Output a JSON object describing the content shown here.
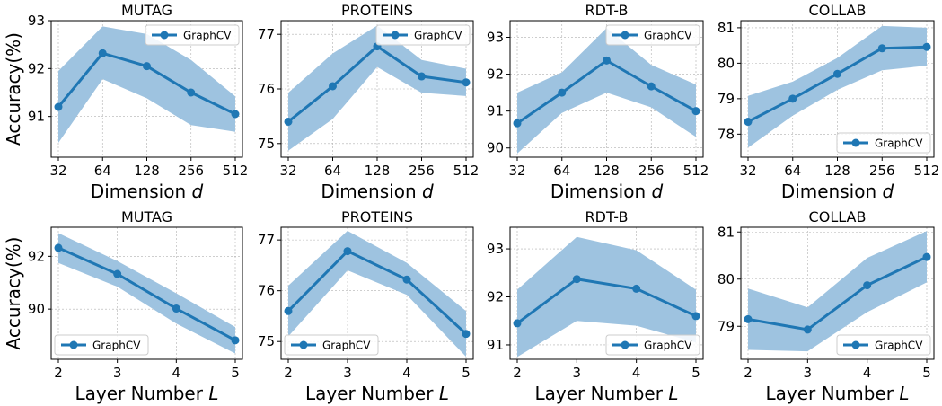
{
  "colors": {
    "line": "#1f77b4",
    "band": "#9ec3e0",
    "grid": "#b0b0b0",
    "axis": "#000000"
  },
  "chart_data": [
    {
      "type": "line",
      "title": "MUTAG",
      "xlabel": "Dimension",
      "xlabel_var": "d",
      "ylabel": "Accuracy(%)",
      "categories": [
        "32",
        "64",
        "128",
        "256",
        "512"
      ],
      "series": [
        {
          "name": "GraphCV",
          "values": [
            91.2,
            92.32,
            92.05,
            91.5,
            91.05
          ],
          "lower": [
            90.45,
            91.78,
            91.38,
            90.82,
            90.68
          ],
          "upper": [
            91.95,
            92.88,
            92.72,
            92.18,
            91.42
          ]
        }
      ],
      "ylim": [
        90.15,
        93.0
      ],
      "yticks": [
        91,
        92,
        93
      ],
      "grid": true,
      "legend": "upper right"
    },
    {
      "type": "line",
      "title": "PROTEINS",
      "xlabel": "Dimension",
      "xlabel_var": "d",
      "ylabel": "",
      "categories": [
        "32",
        "64",
        "128",
        "256",
        "512"
      ],
      "series": [
        {
          "name": "GraphCV",
          "values": [
            75.4,
            76.05,
            76.78,
            76.23,
            76.12
          ],
          "lower": [
            74.87,
            75.45,
            76.4,
            75.93,
            75.87
          ],
          "upper": [
            75.93,
            76.65,
            77.16,
            76.53,
            76.37
          ]
        }
      ],
      "ylim": [
        74.75,
        77.25
      ],
      "yticks": [
        75,
        76,
        77
      ],
      "grid": true,
      "legend": "upper right"
    },
    {
      "type": "line",
      "title": "RDT-B",
      "xlabel": "Dimension",
      "xlabel_var": "d",
      "ylabel": "",
      "categories": [
        "32",
        "64",
        "128",
        "256",
        "512"
      ],
      "series": [
        {
          "name": "GraphCV",
          "values": [
            90.67,
            91.5,
            92.37,
            91.67,
            91.0
          ],
          "lower": [
            89.85,
            90.95,
            91.5,
            91.1,
            90.3
          ],
          "upper": [
            91.5,
            92.05,
            93.25,
            92.25,
            91.72
          ]
        }
      ],
      "ylim": [
        89.75,
        93.45
      ],
      "yticks": [
        90,
        91,
        92,
        93
      ],
      "grid": true,
      "legend": "upper right"
    },
    {
      "type": "line",
      "title": "COLLAB",
      "xlabel": "Dimension",
      "xlabel_var": "d",
      "ylabel": "",
      "categories": [
        "32",
        "64",
        "128",
        "256",
        "512"
      ],
      "series": [
        {
          "name": "GraphCV",
          "values": [
            78.35,
            79.0,
            79.7,
            80.42,
            80.46
          ],
          "lower": [
            77.62,
            78.52,
            79.25,
            79.8,
            79.93
          ],
          "upper": [
            79.08,
            79.48,
            80.15,
            81.05,
            81.0
          ]
        }
      ],
      "ylim": [
        77.35,
        81.2
      ],
      "yticks": [
        78,
        79,
        80,
        81
      ],
      "grid": true,
      "legend": "lower right"
    },
    {
      "type": "line",
      "title": "MUTAG",
      "xlabel": "Layer Number",
      "xlabel_var": "L",
      "ylabel": "Accuracy(%)",
      "categories": [
        "2",
        "3",
        "4",
        "5"
      ],
      "series": [
        {
          "name": "GraphCV",
          "values": [
            92.32,
            91.33,
            90.02,
            88.82
          ],
          "lower": [
            91.75,
            90.85,
            89.45,
            88.32
          ],
          "upper": [
            92.88,
            91.82,
            90.6,
            89.32
          ]
        }
      ],
      "ylim": [
        88.1,
        93.1
      ],
      "yticks": [
        90,
        92
      ],
      "grid": true,
      "legend": "lower left"
    },
    {
      "type": "line",
      "title": "PROTEINS",
      "xlabel": "Layer Number",
      "xlabel_var": "L",
      "ylabel": "",
      "categories": [
        "2",
        "3",
        "4",
        "5"
      ],
      "series": [
        {
          "name": "GraphCV",
          "values": [
            75.6,
            76.78,
            76.22,
            75.15
          ],
          "lower": [
            75.1,
            76.4,
            75.92,
            74.7
          ],
          "upper": [
            76.1,
            77.18,
            76.55,
            75.6
          ]
        }
      ],
      "ylim": [
        74.65,
        77.25
      ],
      "yticks": [
        75,
        76,
        77
      ],
      "grid": true,
      "legend": "lower left"
    },
    {
      "type": "line",
      "title": "RDT-B",
      "xlabel": "Layer Number",
      "xlabel_var": "L",
      "ylabel": "",
      "categories": [
        "2",
        "3",
        "4",
        "5"
      ],
      "series": [
        {
          "name": "GraphCV",
          "values": [
            91.45,
            92.37,
            92.17,
            91.6
          ],
          "lower": [
            90.75,
            91.5,
            91.4,
            91.05
          ],
          "upper": [
            92.15,
            93.25,
            92.97,
            92.15
          ]
        }
      ],
      "ylim": [
        90.7,
        93.45
      ],
      "yticks": [
        91,
        92,
        93
      ],
      "grid": true,
      "legend": "lower right"
    },
    {
      "type": "line",
      "title": "COLLAB",
      "xlabel": "Layer Number",
      "xlabel_var": "L",
      "ylabel": "",
      "categories": [
        "2",
        "3",
        "4",
        "5"
      ],
      "series": [
        {
          "name": "GraphCV",
          "values": [
            79.15,
            78.93,
            79.87,
            80.47
          ],
          "lower": [
            78.5,
            78.47,
            79.3,
            79.93
          ],
          "upper": [
            79.8,
            79.4,
            80.45,
            81.02
          ]
        }
      ],
      "ylim": [
        78.3,
        81.1
      ],
      "yticks": [
        79,
        80,
        81
      ],
      "grid": true,
      "legend": "lower right"
    }
  ]
}
